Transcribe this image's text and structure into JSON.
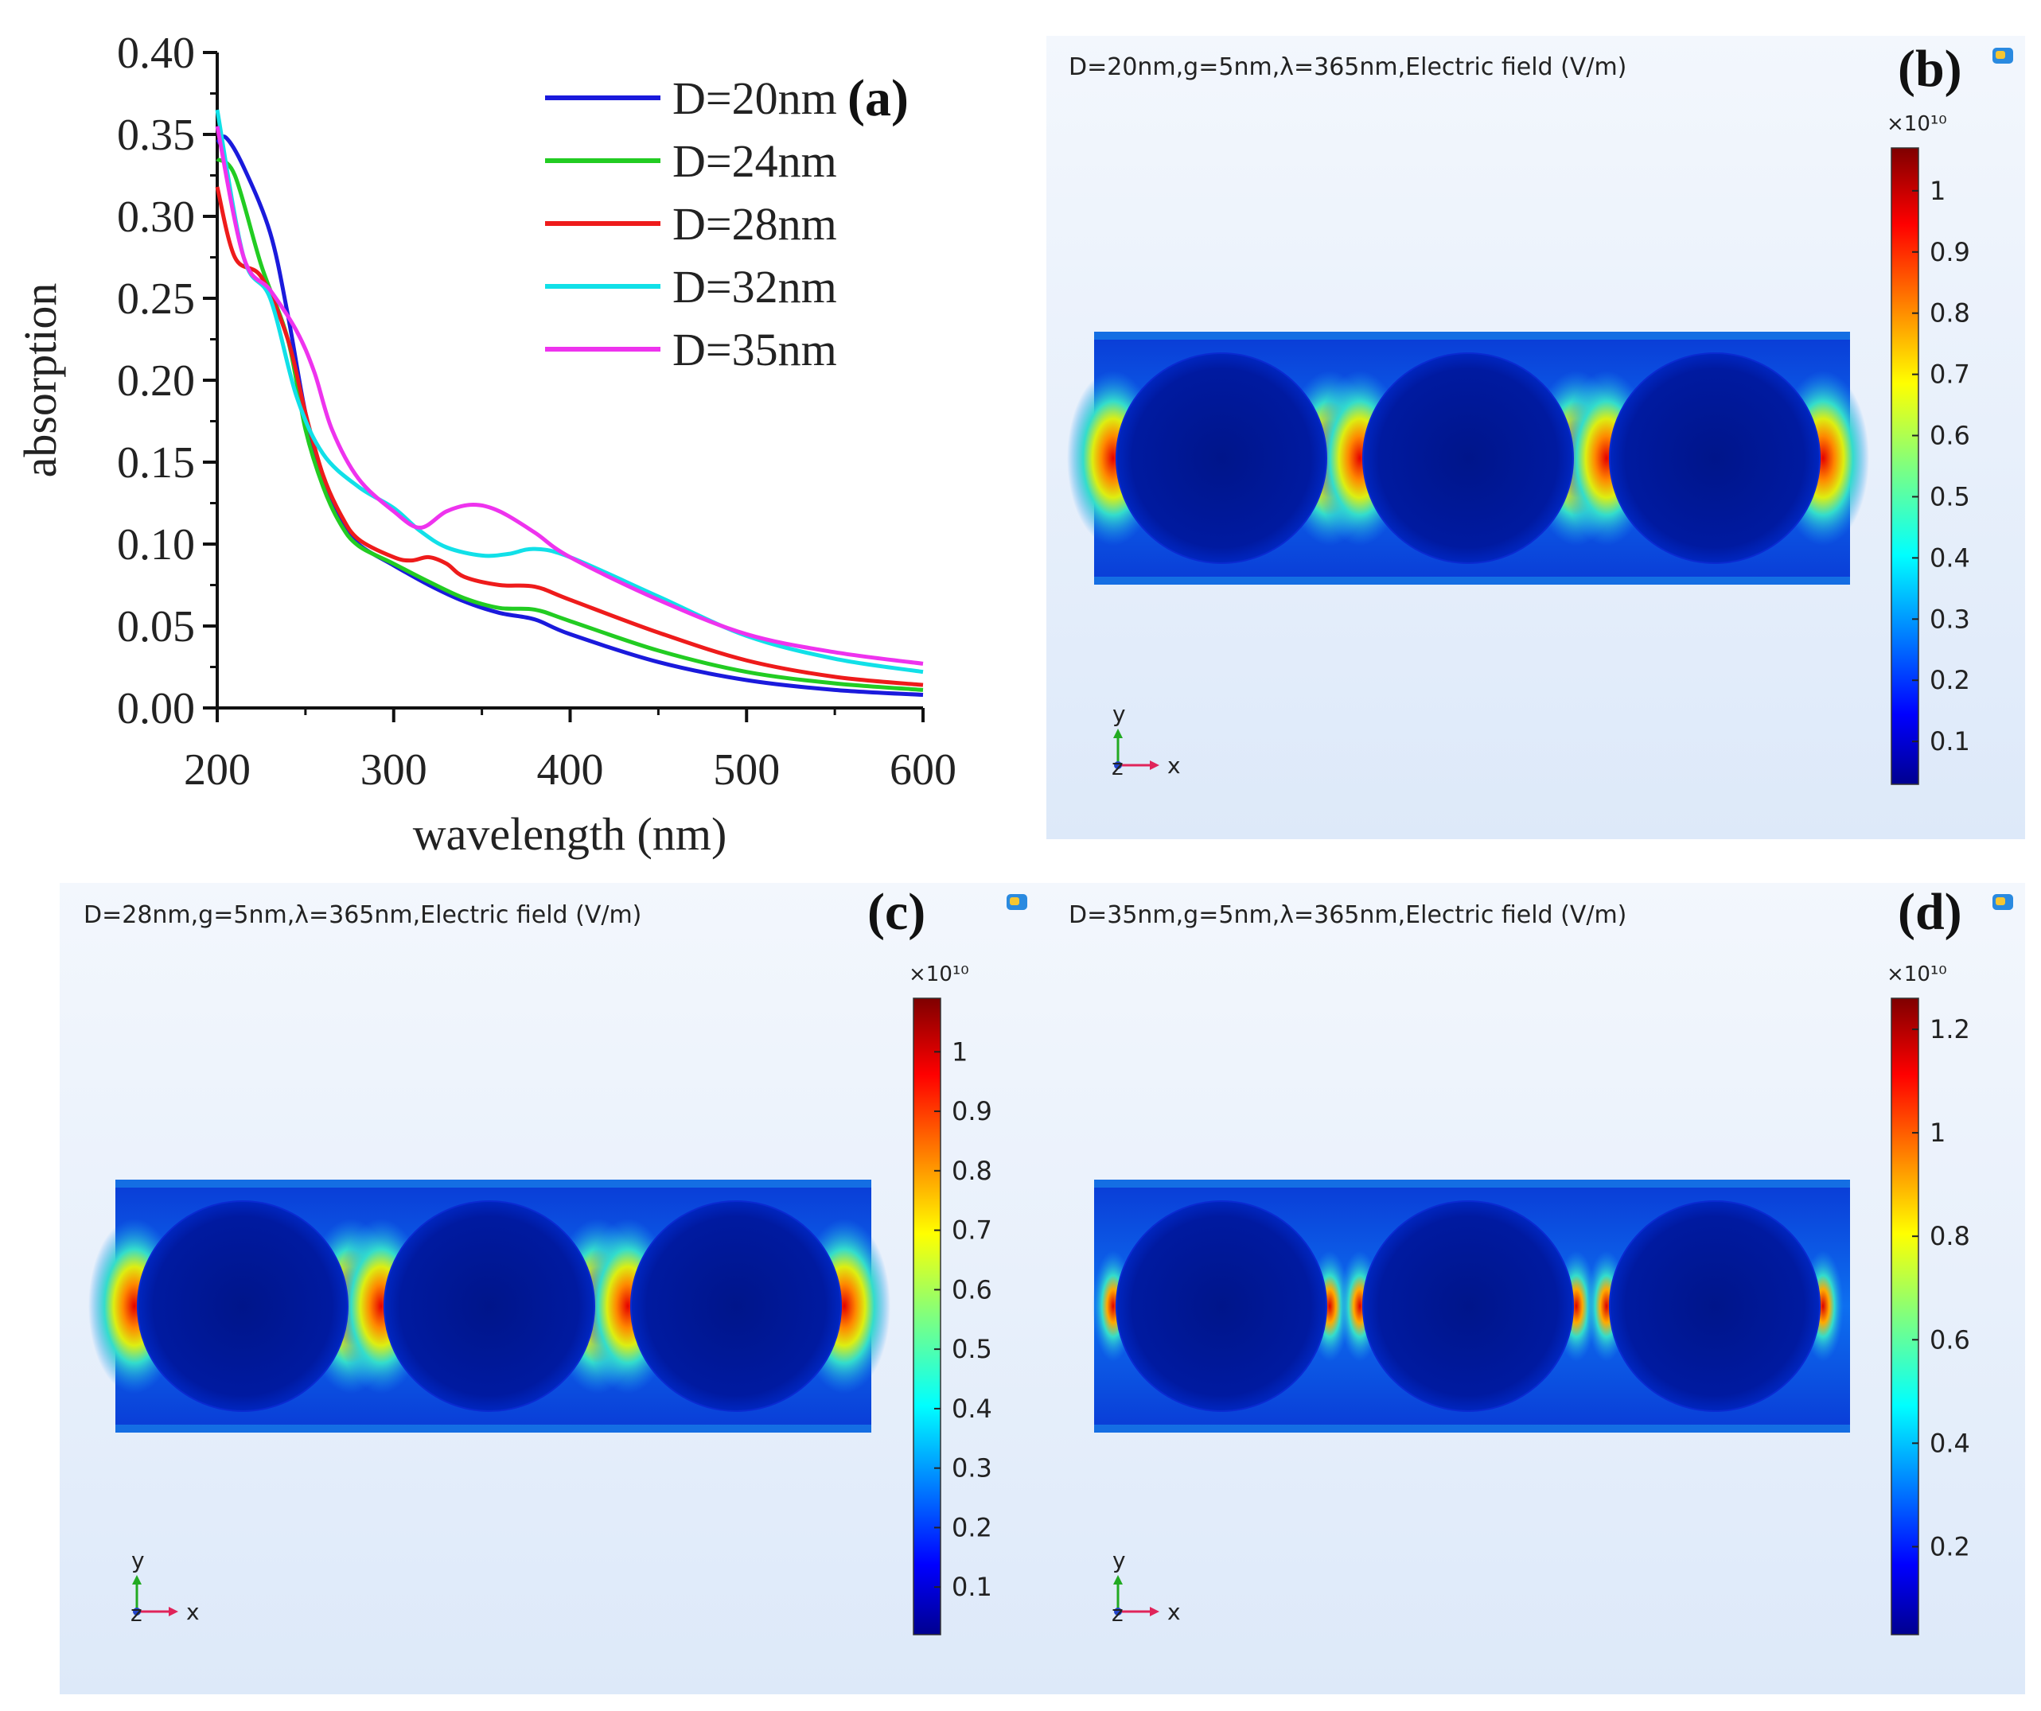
{
  "chart_data": [
    {
      "panel": "(a)",
      "type": "line",
      "xlabel": "wavelength (nm)",
      "ylabel": "absorption",
      "xlim": [
        200,
        600
      ],
      "ylim": [
        0.0,
        0.4
      ],
      "xticks": [
        "200",
        "300",
        "400",
        "500",
        "600"
      ],
      "yticks": [
        "0.00",
        "0.05",
        "0.10",
        "0.15",
        "0.20",
        "0.25",
        "0.30",
        "0.35",
        "0.40"
      ],
      "legend_position": "top-right",
      "series": [
        {
          "name": "D=20nm",
          "color": "#1a1adc",
          "x": [
            200,
            205,
            215,
            230,
            240,
            250,
            260,
            270,
            280,
            300,
            320,
            340,
            360,
            380,
            400,
            450,
            500,
            550,
            600
          ],
          "y": [
            0.345,
            0.348,
            0.33,
            0.29,
            0.24,
            0.18,
            0.14,
            0.115,
            0.1,
            0.087,
            0.075,
            0.065,
            0.058,
            0.054,
            0.045,
            0.028,
            0.017,
            0.011,
            0.008
          ]
        },
        {
          "name": "D=24nm",
          "color": "#22cc22",
          "x": [
            200,
            210,
            225,
            240,
            250,
            260,
            270,
            280,
            300,
            320,
            340,
            360,
            380,
            400,
            450,
            500,
            550,
            600
          ],
          "y": [
            0.335,
            0.325,
            0.27,
            0.225,
            0.17,
            0.135,
            0.112,
            0.099,
            0.088,
            0.077,
            0.067,
            0.061,
            0.06,
            0.053,
            0.035,
            0.022,
            0.015,
            0.011
          ]
        },
        {
          "name": "D=28nm",
          "color": "#ee1b1b",
          "x": [
            200,
            210,
            225,
            240,
            250,
            260,
            270,
            280,
            300,
            310,
            320,
            330,
            340,
            360,
            380,
            400,
            450,
            500,
            550,
            600
          ],
          "y": [
            0.318,
            0.275,
            0.263,
            0.225,
            0.18,
            0.142,
            0.118,
            0.103,
            0.092,
            0.09,
            0.092,
            0.088,
            0.08,
            0.075,
            0.074,
            0.066,
            0.046,
            0.029,
            0.019,
            0.014
          ]
        },
        {
          "name": "D=32nm",
          "color": "#11e0e8",
          "x": [
            200,
            215,
            230,
            245,
            260,
            280,
            300,
            315,
            330,
            350,
            365,
            380,
            400,
            450,
            500,
            550,
            600
          ],
          "y": [
            0.365,
            0.275,
            0.25,
            0.19,
            0.155,
            0.135,
            0.122,
            0.108,
            0.098,
            0.093,
            0.094,
            0.097,
            0.092,
            0.068,
            0.044,
            0.03,
            0.022
          ]
        },
        {
          "name": "D=35nm",
          "color": "#ee33ee",
          "x": [
            200,
            215,
            230,
            245,
            255,
            265,
            280,
            300,
            315,
            330,
            345,
            360,
            380,
            400,
            450,
            500,
            550,
            600
          ],
          "y": [
            0.355,
            0.275,
            0.255,
            0.23,
            0.205,
            0.17,
            0.14,
            0.12,
            0.11,
            0.12,
            0.124,
            0.12,
            0.107,
            0.092,
            0.066,
            0.045,
            0.034,
            0.027
          ]
        }
      ]
    },
    {
      "panel": "(b)",
      "type": "heatmap",
      "title": "D=20nm,g=5nm,λ=365nm,Electric field (V/m)",
      "colorbar_exponent": "×10¹⁰",
      "colorbar_range": [
        0.03,
        1.07
      ],
      "colorbar_ticks": [
        "0.1",
        "0.2",
        "0.3",
        "0.4",
        "0.5",
        "0.6",
        "0.7",
        "0.8",
        "0.9",
        "1"
      ],
      "colorbar_tick_values": [
        0.1,
        0.2,
        0.3,
        0.4,
        0.5,
        0.6,
        0.7,
        0.8,
        0.9,
        1.0
      ],
      "particles": 3,
      "axes": [
        "y",
        "x",
        "z"
      ]
    },
    {
      "panel": "(c)",
      "type": "heatmap",
      "title": "D=28nm,g=5nm,λ=365nm,Electric field (V/m)",
      "colorbar_exponent": "×10¹⁰",
      "colorbar_range": [
        0.02,
        1.09
      ],
      "colorbar_ticks": [
        "0.1",
        "0.2",
        "0.3",
        "0.4",
        "0.5",
        "0.6",
        "0.7",
        "0.8",
        "0.9",
        "1"
      ],
      "colorbar_tick_values": [
        0.1,
        0.2,
        0.3,
        0.4,
        0.5,
        0.6,
        0.7,
        0.8,
        0.9,
        1.0
      ],
      "particles": 3,
      "axes": [
        "y",
        "x",
        "z"
      ]
    },
    {
      "panel": "(d)",
      "type": "heatmap",
      "title": "D=35nm,g=5nm,λ=365nm,Electric field (V/m)",
      "colorbar_exponent": "×10¹⁰",
      "colorbar_range": [
        0.03,
        1.26
      ],
      "colorbar_ticks": [
        "0.2",
        "0.4",
        "0.6",
        "0.8",
        "1",
        "1.2"
      ],
      "colorbar_tick_values": [
        0.2,
        0.4,
        0.6,
        0.8,
        1.0,
        1.2
      ],
      "particles": 3,
      "axes": [
        "y",
        "x",
        "z"
      ]
    }
  ]
}
